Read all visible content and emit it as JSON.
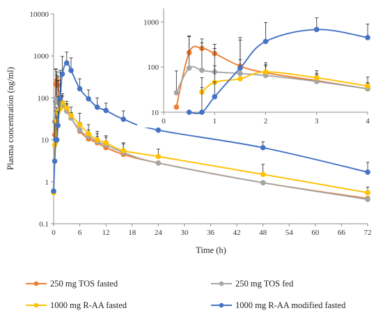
{
  "chart_data": {
    "type": "line",
    "ylabel": "Plasma concentration (ng/ml)",
    "xlabel": "Time (h)",
    "y_scale": "log",
    "main": {
      "xlim": [
        0,
        72
      ],
      "ylim": [
        0.1,
        10000
      ],
      "x_ticks": [
        0,
        6,
        12,
        18,
        24,
        30,
        36,
        42,
        48,
        54,
        60,
        66,
        72
      ],
      "y_ticks": [
        0.1,
        1,
        10,
        100,
        1000,
        10000
      ],
      "x_tick_labels": [
        "0",
        "6",
        "12",
        "18",
        "24",
        "30",
        "36",
        "42",
        "48",
        "54",
        "60",
        "66",
        "72"
      ],
      "y_tick_labels": [
        "0.1",
        "1",
        "10",
        "100",
        "1000",
        "10000"
      ]
    },
    "inset": {
      "xlim": [
        0,
        4
      ],
      "ylim": [
        10,
        2000
      ],
      "x_ticks": [
        0,
        1,
        2,
        3,
        4
      ],
      "y_ticks": [
        10,
        100,
        1000
      ],
      "x_tick_labels": [
        "0",
        "1",
        "2",
        "3",
        "4"
      ],
      "y_tick_labels": [
        "10",
        "100",
        "1000"
      ]
    },
    "series": [
      {
        "name": "250 mg TOS fasted",
        "color": "#ED7D31",
        "points": [
          [
            0.25,
            13
          ],
          [
            0.5,
            210
          ],
          [
            0.75,
            260
          ],
          [
            1,
            200
          ],
          [
            1.5,
            105
          ],
          [
            2,
            75
          ],
          [
            3,
            50
          ],
          [
            4,
            33
          ],
          [
            6,
            16
          ],
          [
            8,
            10.5
          ],
          [
            10,
            8.5
          ],
          [
            12,
            6.5
          ],
          [
            16,
            4.5
          ],
          [
            24,
            2.8
          ],
          [
            48,
            0.95
          ],
          [
            72,
            0.4
          ]
        ],
        "err": [
          0,
          280,
          160,
          120,
          40,
          30,
          18,
          12,
          7,
          4,
          3.5,
          2.5,
          1.5,
          0,
          0,
          0
        ]
      },
      {
        "name": "250 mg TOS fed",
        "color": "#A5A5A5",
        "points": [
          [
            0.25,
            27
          ],
          [
            0.5,
            95
          ],
          [
            0.75,
            85
          ],
          [
            1,
            78
          ],
          [
            1.5,
            72
          ],
          [
            2,
            65
          ],
          [
            3,
            48
          ],
          [
            4,
            33
          ],
          [
            6,
            17
          ],
          [
            8,
            12
          ],
          [
            10,
            9
          ],
          [
            12,
            7.5
          ],
          [
            16,
            5
          ],
          [
            24,
            2.8
          ],
          [
            48,
            0.95
          ],
          [
            72,
            0.38
          ]
        ],
        "err": [
          55,
          380,
          260,
          180,
          380,
          60,
          25,
          10,
          9,
          5,
          5,
          4,
          3,
          0,
          0,
          0
        ]
      },
      {
        "name": "1000 mg R-AA fasted",
        "color": "#FFC000",
        "points": [
          [
            0,
            0.55
          ],
          [
            0.25,
            7.5
          ],
          [
            0.5,
            9
          ],
          [
            0.75,
            28
          ],
          [
            1,
            46
          ],
          [
            1.5,
            55
          ],
          [
            2,
            78
          ],
          [
            3,
            58
          ],
          [
            4,
            38
          ],
          [
            6,
            23
          ],
          [
            8,
            14
          ],
          [
            10,
            10
          ],
          [
            12,
            8.5
          ],
          [
            16,
            5.5
          ],
          [
            24,
            4
          ],
          [
            48,
            1.5
          ],
          [
            72,
            0.55
          ]
        ],
        "err": [
          0,
          20,
          40,
          30,
          60,
          0,
          35,
          25,
          22,
          20,
          9,
          6,
          4,
          3,
          2,
          1.1,
          0.2
        ]
      },
      {
        "name": "1000 mg R-AA modified fasted",
        "color": "#4472C4",
        "points": [
          [
            0,
            0.6
          ],
          [
            0.25,
            3.1
          ],
          [
            0.5,
            10
          ],
          [
            0.75,
            10
          ],
          [
            1,
            22
          ],
          [
            1.5,
            95
          ],
          [
            2,
            370
          ],
          [
            3,
            680
          ],
          [
            4,
            450
          ],
          [
            6,
            165
          ],
          [
            8,
            95
          ],
          [
            10,
            60
          ],
          [
            12,
            50
          ],
          [
            16,
            31
          ],
          [
            24,
            17
          ],
          [
            48,
            6.5
          ],
          [
            72,
            1.7
          ]
        ],
        "err": [
          0,
          0,
          0,
          25,
          25,
          300,
          600,
          550,
          450,
          120,
          60,
          40,
          25,
          18,
          8,
          2.5,
          1.2
        ]
      }
    ],
    "legend": {
      "position": "bottom",
      "entries": [
        "250 mg TOS fasted",
        "250 mg TOS fed",
        "1000 mg R-AA fasted",
        "1000 mg R-AA modified fasted"
      ]
    }
  }
}
